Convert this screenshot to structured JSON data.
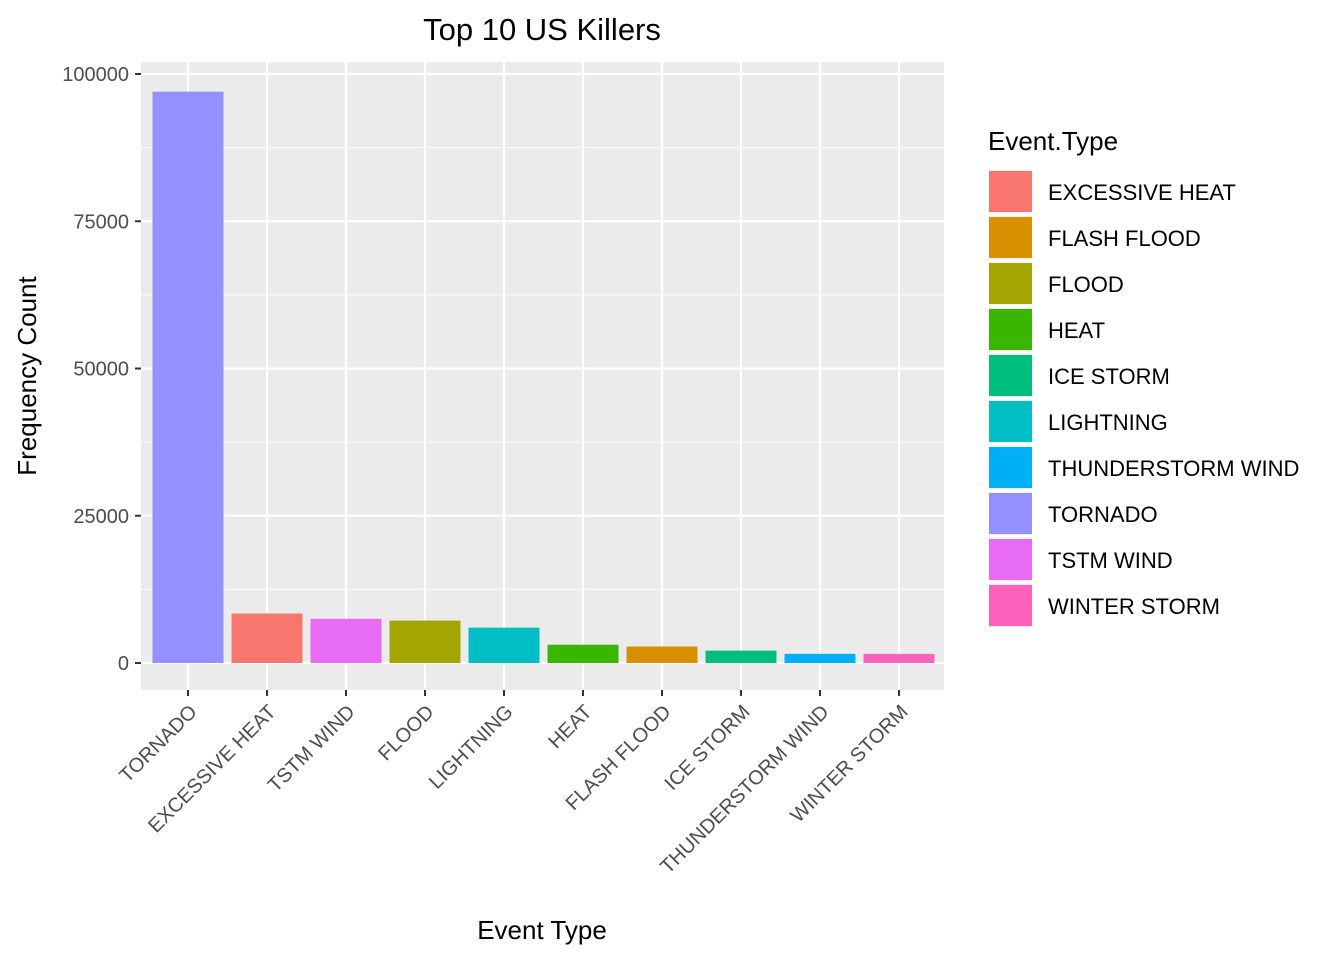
{
  "chart_data": {
    "type": "bar",
    "title": "Top 10 US Killers",
    "xlabel": "Event Type",
    "ylabel": "Frequency Count",
    "ylim": [
      0,
      100000
    ],
    "yticks": [
      "0",
      "25000",
      "50000",
      "75000",
      "100000"
    ],
    "grid": true,
    "categories": [
      "TORNADO",
      "EXCESSIVE HEAT",
      "TSTM WIND",
      "FLOOD",
      "LIGHTNING",
      "HEAT",
      "FLASH FLOOD",
      "ICE STORM",
      "THUNDERSTORM WIND",
      "WINTER STORM"
    ],
    "values": [
      97000,
      8400,
      7500,
      7200,
      6000,
      3100,
      2800,
      2100,
      1550,
      1550
    ],
    "legend": {
      "title": "Event.Type",
      "placement": "right",
      "entries": [
        {
          "label": "EXCESSIVE HEAT",
          "color": "#F8766D"
        },
        {
          "label": "FLASH FLOOD",
          "color": "#D89000"
        },
        {
          "label": "FLOOD",
          "color": "#A3A500"
        },
        {
          "label": "HEAT",
          "color": "#39B600"
        },
        {
          "label": "ICE STORM",
          "color": "#00BF7D"
        },
        {
          "label": "LIGHTNING",
          "color": "#00BFC4"
        },
        {
          "label": "THUNDERSTORM WIND",
          "color": "#00B0F6"
        },
        {
          "label": "TORNADO",
          "color": "#9590FF"
        },
        {
          "label": "TSTM WIND",
          "color": "#E76BF3"
        },
        {
          "label": "WINTER STORM",
          "color": "#FF62BC"
        }
      ]
    },
    "panel_background": "#EBEBEB",
    "grid_color": "#FFFFFF"
  }
}
